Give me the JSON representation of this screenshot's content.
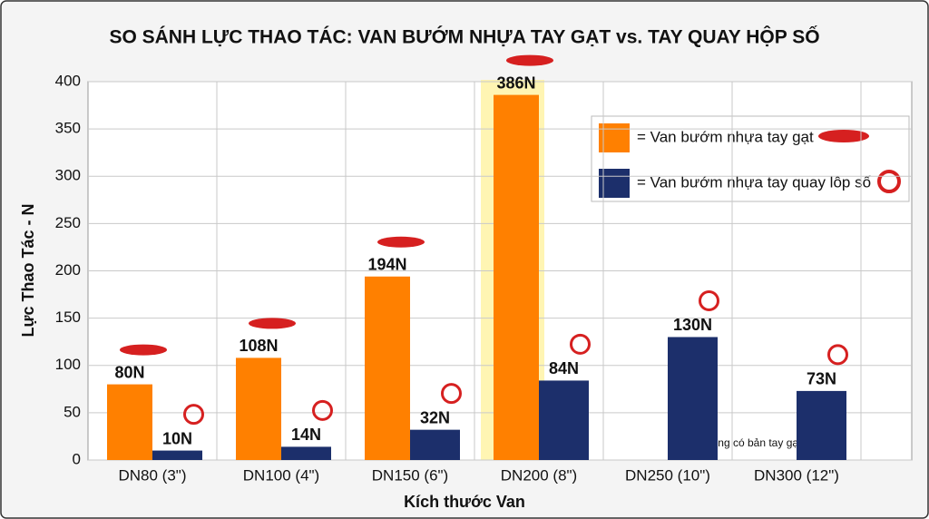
{
  "chart_data": {
    "type": "bar",
    "title": "SO SÁNH LỰC THAO TÁC: VAN BƯỚM NHỰA TAY GẠT vs. TAY QUAY HỘP SỐ",
    "x_label": "Kích thước Van",
    "y_label": "Lực Thao Tác - N",
    "categories": [
      "DN80 (3\")",
      "DN100 (4\")",
      "DN150 (6\")",
      "DN200 (8\")",
      "DN250 (10\")",
      "DN300 (12\")"
    ],
    "series": [
      {
        "name": "= Van bướm nhựa tay gạt",
        "color": "#ff8000",
        "values": [
          80,
          108,
          194,
          386,
          null,
          null
        ],
        "value_labels": [
          "80N",
          "108N",
          "194N",
          "386N",
          null,
          null
        ]
      },
      {
        "name": "= Van bướm nhựa tay quay lôp số",
        "color": "#1c2f6b",
        "values": [
          10,
          14,
          32,
          84,
          130,
          73
        ],
        "value_labels": [
          "10N",
          "14N",
          "32N",
          "84N",
          "130N",
          "73N"
        ]
      }
    ],
    "annotation": "— (không có bản tay gạt)",
    "ylim": [
      0,
      400
    ],
    "yticks": [
      0,
      50,
      100,
      150,
      200,
      250,
      300,
      350,
      400
    ],
    "grid": true
  }
}
